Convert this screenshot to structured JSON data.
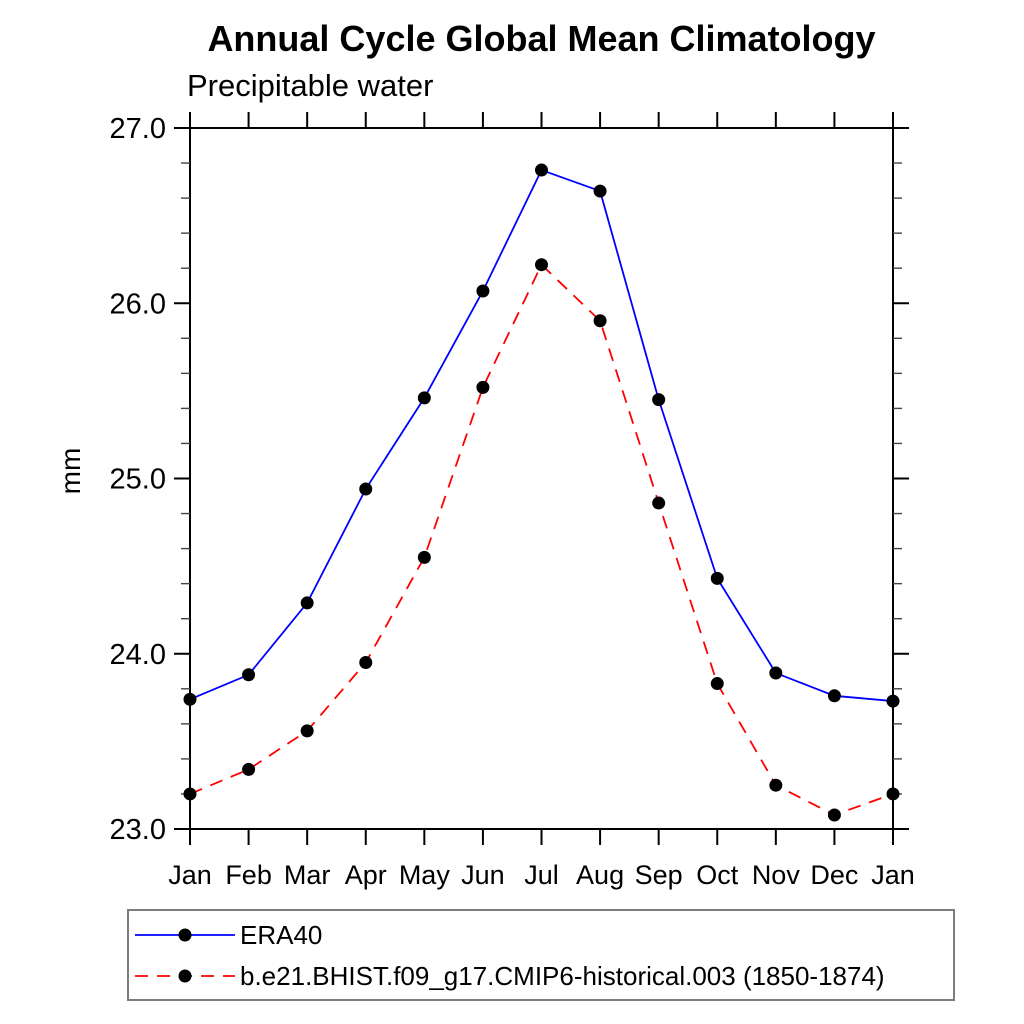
{
  "chart": {
    "colors": {
      "axis": "#000000",
      "marker": "#000000",
      "legend_border": "#7d7d7d",
      "series_1": "#0000ff",
      "series_2": "#ff0000"
    }
  },
  "chart_data": {
    "type": "line",
    "title": "Annual Cycle Global Mean Climatology",
    "subtitle": "Precipitable water",
    "ylabel": "mm",
    "xlabel": "",
    "categories": [
      "Jan",
      "Feb",
      "Mar",
      "Apr",
      "May",
      "Jun",
      "Jul",
      "Aug",
      "Sep",
      "Oct",
      "Nov",
      "Dec",
      "Jan"
    ],
    "series": [
      {
        "name": "ERA40",
        "color": "#0000ff",
        "line_style": "solid",
        "marker": "filled-circle",
        "marker_color": "#000000",
        "values": [
          23.74,
          23.88,
          24.29,
          24.94,
          25.46,
          26.07,
          26.76,
          26.64,
          25.45,
          24.43,
          23.89,
          23.76,
          23.73
        ]
      },
      {
        "name": "b.e21.BHIST.f09_g17.CMIP6-historical.003 (1850-1874)",
        "color": "#ff0000",
        "line_style": "dashed",
        "marker": "filled-circle",
        "marker_color": "#000000",
        "values": [
          23.2,
          23.34,
          23.56,
          23.95,
          24.55,
          25.52,
          26.22,
          25.9,
          24.86,
          23.83,
          23.25,
          23.08,
          23.2
        ]
      }
    ],
    "ylim": [
      23.0,
      27.0
    ],
    "y_major_tick_labels": [
      "23.0",
      "24.0",
      "25.0",
      "26.0",
      "27.0"
    ],
    "y_major_step": 1.0,
    "y_minor_step": 0.2,
    "grid": false,
    "legend_position": "bottom-left-box"
  }
}
